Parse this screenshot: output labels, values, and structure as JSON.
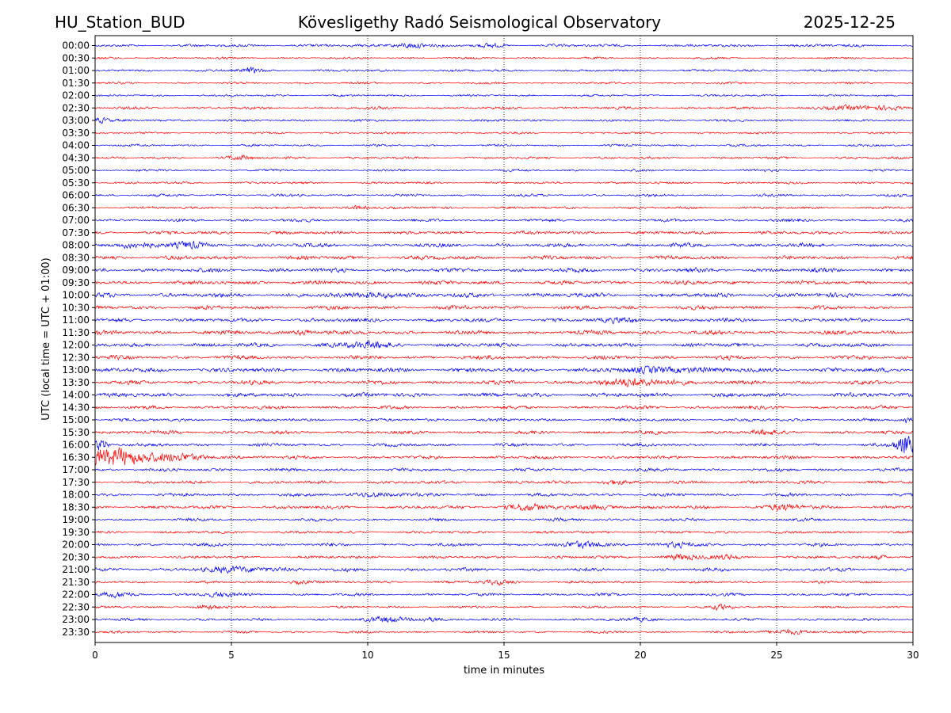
{
  "header": {
    "station": "HU_Station_BUD",
    "observatory": "Kövesligethy Radó Seismological Observatory",
    "date": "2025-12-25"
  },
  "chart_data": {
    "type": "line",
    "title": "Kövesligethy Radó Seismological Observatory",
    "xlabel": "time in minutes",
    "ylabel": "UTC (local time = UTC + 01:00)",
    "xlim": [
      0,
      30
    ],
    "x_ticks": [
      "0",
      "5",
      "10",
      "15",
      "20",
      "25",
      "30"
    ],
    "x_tick_values": [
      0,
      5,
      10,
      15,
      20,
      25,
      30
    ],
    "grid": "vertical dotted at x ticks",
    "row_colors": [
      "#0000ff",
      "#ff0000"
    ],
    "rows": [
      {
        "label": "00:00",
        "amp": 2.2,
        "events": [
          {
            "t": 11.5,
            "a": 4.5,
            "w": 0.6
          },
          {
            "t": 14.5,
            "a": 2.0,
            "w": 0.5
          }
        ]
      },
      {
        "label": "00:30",
        "amp": 1.6,
        "events": []
      },
      {
        "label": "01:00",
        "amp": 1.8,
        "events": [
          {
            "t": 5.7,
            "a": 3.5,
            "w": 0.4
          }
        ]
      },
      {
        "label": "01:30",
        "amp": 1.5,
        "events": []
      },
      {
        "label": "02:00",
        "amp": 1.6,
        "events": []
      },
      {
        "label": "02:30",
        "amp": 2.0,
        "events": [
          {
            "t": 27.5,
            "a": 3.0,
            "w": 0.8
          },
          {
            "t": 29.2,
            "a": 3.0,
            "w": 0.6
          }
        ]
      },
      {
        "label": "03:00",
        "amp": 1.8,
        "events": [
          {
            "t": 0.2,
            "a": 3.5,
            "w": 0.3
          }
        ]
      },
      {
        "label": "03:30",
        "amp": 1.6,
        "events": []
      },
      {
        "label": "04:00",
        "amp": 1.7,
        "events": []
      },
      {
        "label": "04:30",
        "amp": 1.8,
        "events": [
          {
            "t": 5.3,
            "a": 3.0,
            "w": 0.5
          }
        ]
      },
      {
        "label": "05:00",
        "amp": 1.8,
        "events": []
      },
      {
        "label": "05:30",
        "amp": 1.8,
        "events": []
      },
      {
        "label": "06:00",
        "amp": 2.0,
        "events": []
      },
      {
        "label": "06:30",
        "amp": 1.9,
        "events": [
          {
            "t": 9.6,
            "a": 3.5,
            "w": 0.4
          }
        ]
      },
      {
        "label": "07:00",
        "amp": 2.3,
        "events": []
      },
      {
        "label": "07:30",
        "amp": 2.6,
        "events": []
      },
      {
        "label": "08:00",
        "amp": 3.0,
        "events": [
          {
            "t": 1.5,
            "a": 3.5,
            "w": 1.0
          },
          {
            "t": 3.4,
            "a": 3.5,
            "w": 0.6
          }
        ]
      },
      {
        "label": "08:30",
        "amp": 3.0,
        "events": []
      },
      {
        "label": "09:00",
        "amp": 3.2,
        "events": []
      },
      {
        "label": "09:30",
        "amp": 3.0,
        "events": []
      },
      {
        "label": "10:00",
        "amp": 3.4,
        "events": [
          {
            "t": 10.5,
            "a": 4.0,
            "w": 0.8
          }
        ]
      },
      {
        "label": "10:30",
        "amp": 3.0,
        "events": []
      },
      {
        "label": "11:00",
        "amp": 3.0,
        "events": [
          {
            "t": 19.5,
            "a": 3.5,
            "w": 0.6
          }
        ]
      },
      {
        "label": "11:30",
        "amp": 3.2,
        "events": [
          {
            "t": 7.7,
            "a": 4.0,
            "w": 0.4
          }
        ]
      },
      {
        "label": "12:00",
        "amp": 3.0,
        "events": [
          {
            "t": 10.0,
            "a": 4.0,
            "w": 1.0
          }
        ]
      },
      {
        "label": "12:30",
        "amp": 3.0,
        "events": []
      },
      {
        "label": "13:00",
        "amp": 3.4,
        "events": [
          {
            "t": 21.0,
            "a": 4.0,
            "w": 1.5
          }
        ]
      },
      {
        "label": "13:30",
        "amp": 3.0,
        "events": [
          {
            "t": 20.0,
            "a": 5.0,
            "w": 1.5
          }
        ]
      },
      {
        "label": "14:00",
        "amp": 3.2,
        "events": []
      },
      {
        "label": "14:30",
        "amp": 2.6,
        "events": []
      },
      {
        "label": "15:00",
        "amp": 2.4,
        "events": [
          {
            "t": 29.9,
            "a": 10.0,
            "w": 0.2
          }
        ]
      },
      {
        "label": "15:30",
        "amp": 2.6,
        "events": [
          {
            "t": 24.5,
            "a": 3.0,
            "w": 0.5
          }
        ]
      },
      {
        "label": "16:00",
        "amp": 2.4,
        "events": [
          {
            "t": 0.2,
            "a": 9.0,
            "w": 0.3
          },
          {
            "t": 29.7,
            "a": 16.0,
            "w": 0.35
          }
        ]
      },
      {
        "label": "16:30",
        "amp": 2.6,
        "events": [
          {
            "t": 0.4,
            "a": 13.0,
            "w": 1.2
          },
          {
            "t": 2.5,
            "a": 5.0,
            "w": 1.8
          }
        ]
      },
      {
        "label": "17:00",
        "amp": 2.4,
        "events": []
      },
      {
        "label": "17:30",
        "amp": 2.4,
        "events": [
          {
            "t": 19.0,
            "a": 3.5,
            "w": 0.5
          }
        ]
      },
      {
        "label": "18:00",
        "amp": 2.4,
        "events": [
          {
            "t": 10.3,
            "a": 3.5,
            "w": 0.8
          }
        ]
      },
      {
        "label": "18:30",
        "amp": 2.6,
        "events": [
          {
            "t": 15.8,
            "a": 4.5,
            "w": 0.8
          },
          {
            "t": 25.3,
            "a": 4.5,
            "w": 0.6
          },
          {
            "t": 18.5,
            "a": 3.0,
            "w": 0.8
          }
        ]
      },
      {
        "label": "19:00",
        "amp": 2.2,
        "events": []
      },
      {
        "label": "19:30",
        "amp": 2.0,
        "events": []
      },
      {
        "label": "20:00",
        "amp": 2.4,
        "events": [
          {
            "t": 18.0,
            "a": 3.5,
            "w": 1.0
          },
          {
            "t": 21.2,
            "a": 3.5,
            "w": 0.6
          }
        ]
      },
      {
        "label": "20:30",
        "amp": 2.2,
        "events": [
          {
            "t": 21.5,
            "a": 3.5,
            "w": 0.6
          },
          {
            "t": 23.0,
            "a": 3.0,
            "w": 0.6
          },
          {
            "t": 28.8,
            "a": 3.0,
            "w": 0.4
          }
        ]
      },
      {
        "label": "21:00",
        "amp": 2.6,
        "events": [
          {
            "t": 5.5,
            "a": 3.5,
            "w": 1.5
          }
        ]
      },
      {
        "label": "21:30",
        "amp": 2.0,
        "events": [
          {
            "t": 7.5,
            "a": 3.0,
            "w": 0.4
          },
          {
            "t": 14.8,
            "a": 3.0,
            "w": 0.6
          }
        ]
      },
      {
        "label": "22:00",
        "amp": 2.2,
        "events": [
          {
            "t": 0.8,
            "a": 3.0,
            "w": 0.6
          },
          {
            "t": 4.5,
            "a": 3.0,
            "w": 0.6
          }
        ]
      },
      {
        "label": "22:30",
        "amp": 1.8,
        "events": [
          {
            "t": 4.0,
            "a": 3.5,
            "w": 0.4
          },
          {
            "t": 23.0,
            "a": 3.5,
            "w": 0.4
          }
        ]
      },
      {
        "label": "23:00",
        "amp": 2.0,
        "events": [
          {
            "t": 10.8,
            "a": 3.5,
            "w": 0.8
          },
          {
            "t": 12.2,
            "a": 3.0,
            "w": 0.5
          },
          {
            "t": 20.2,
            "a": 3.0,
            "w": 0.5
          }
        ]
      },
      {
        "label": "23:30",
        "amp": 1.8,
        "events": [
          {
            "t": 25.5,
            "a": 3.0,
            "w": 1.0
          }
        ]
      }
    ]
  }
}
